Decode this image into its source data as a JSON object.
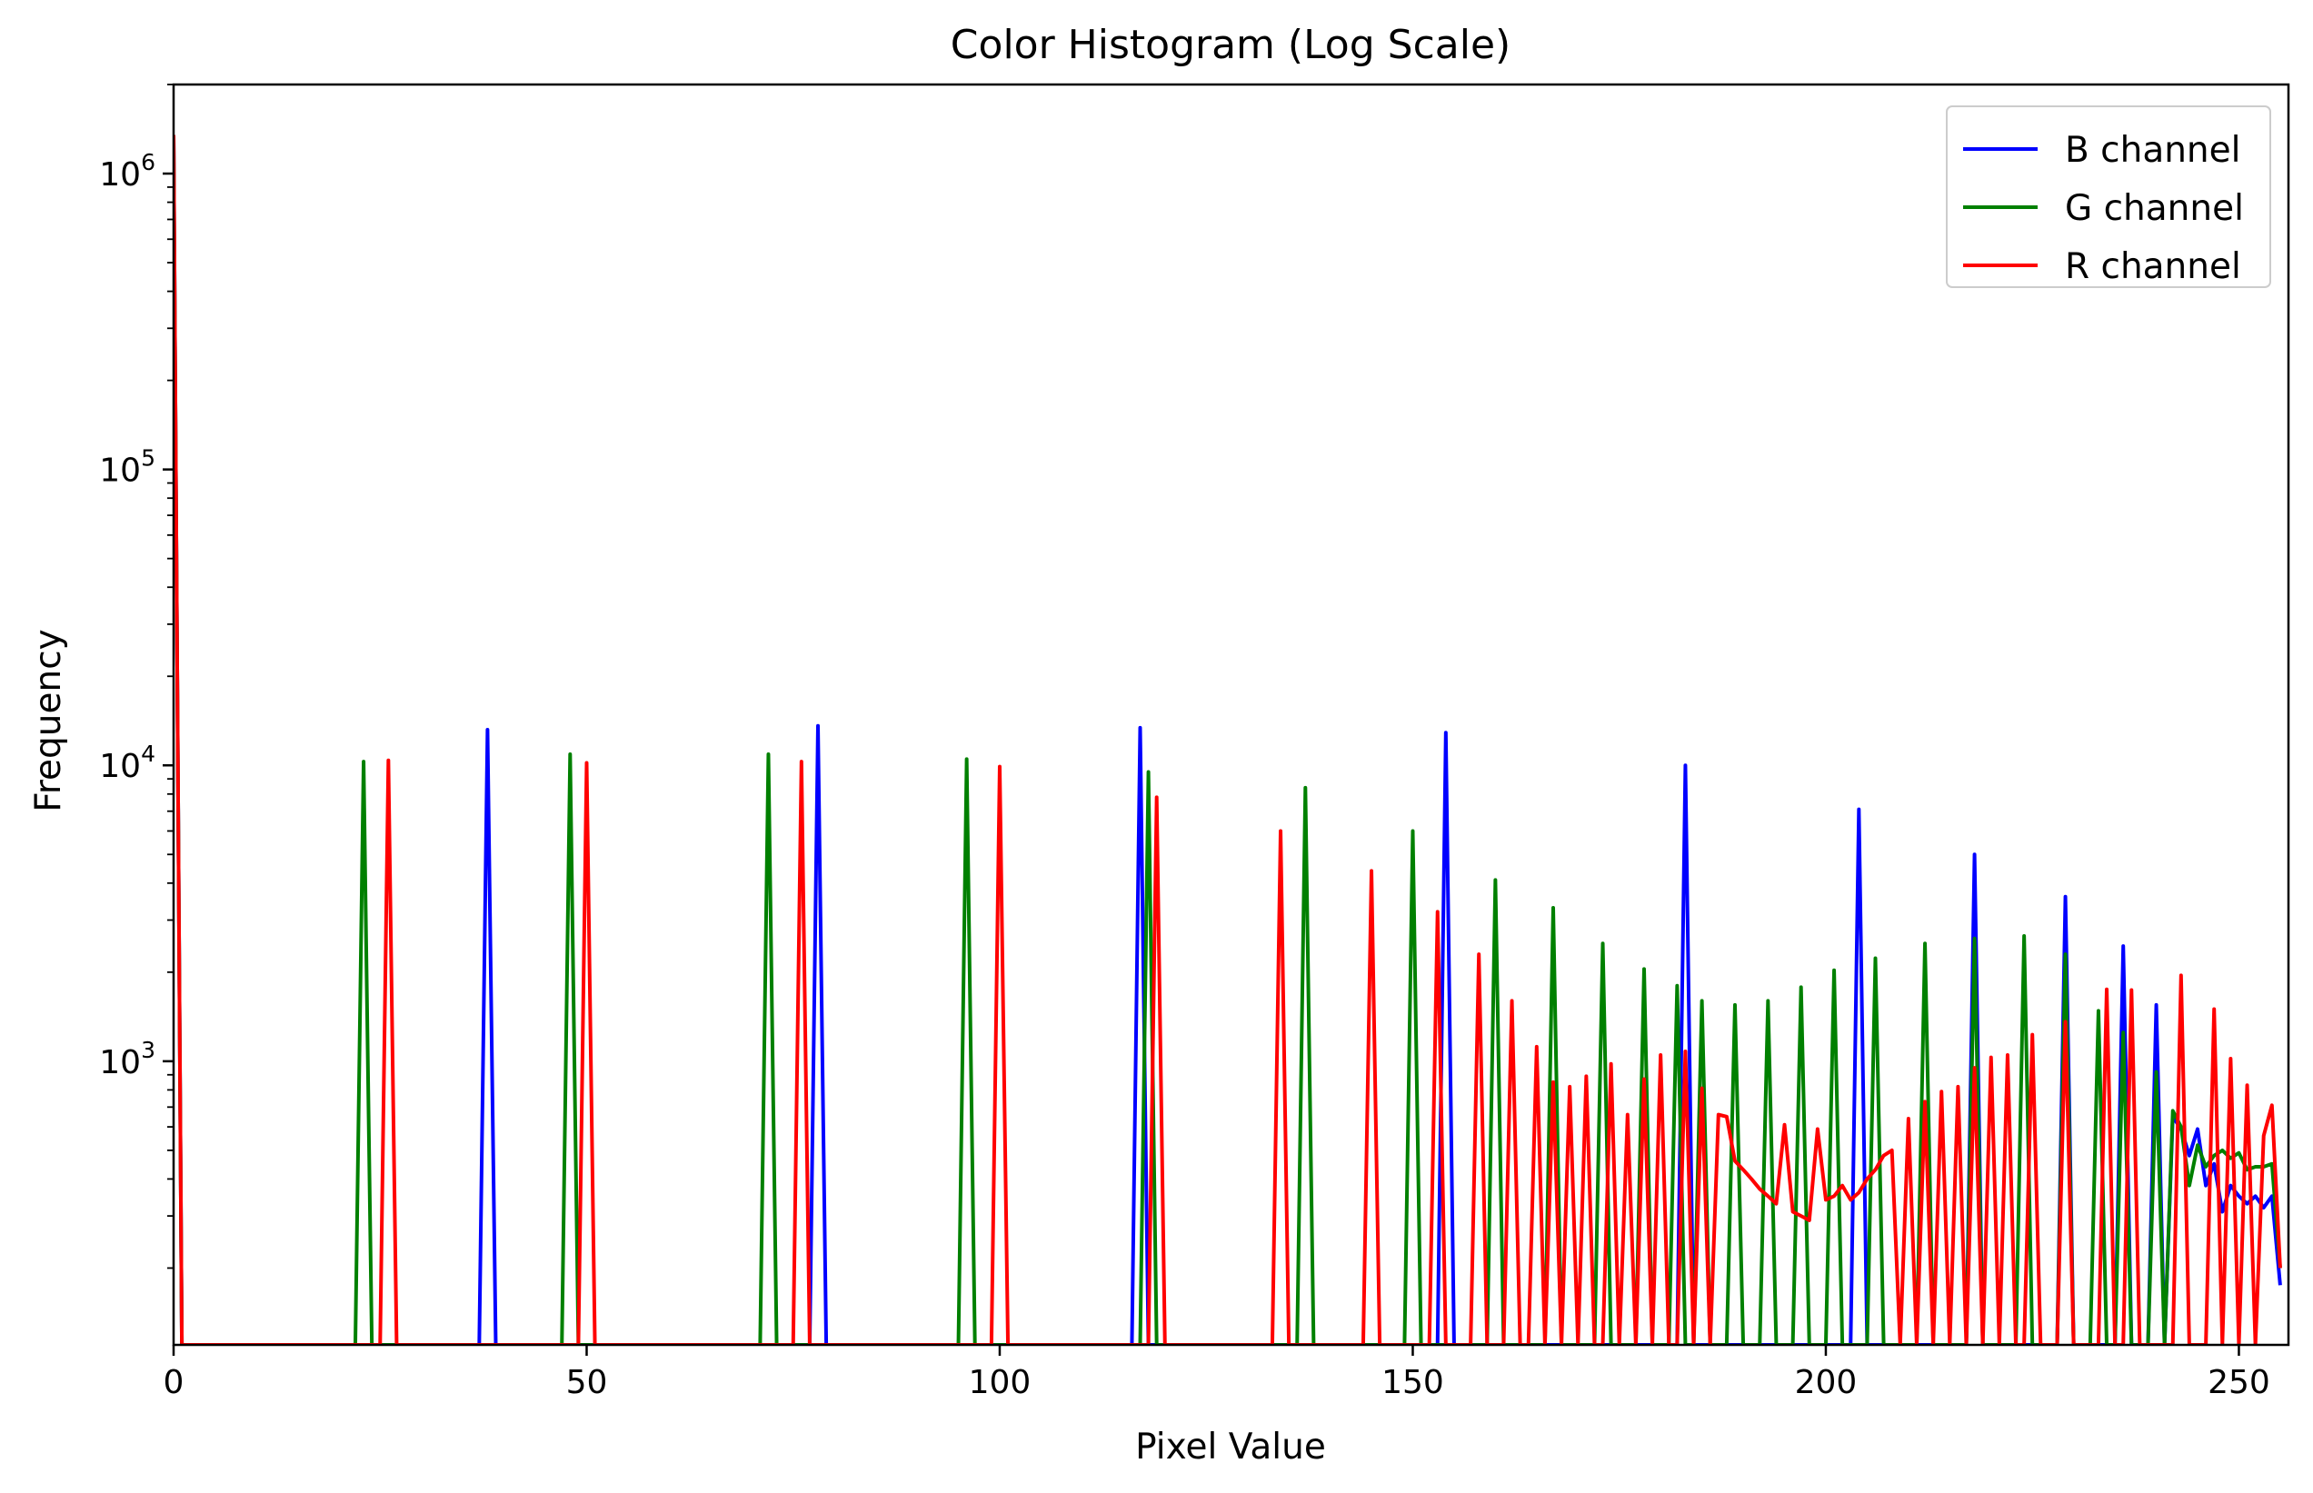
{
  "chart_data": {
    "type": "line",
    "title": "Color Histogram (Log Scale)",
    "xlabel": "Pixel Value",
    "ylabel": "Frequency",
    "xlim": [
      0,
      256
    ],
    "ylim": [
      110,
      2000000
    ],
    "yscale": "log",
    "grid": false,
    "legend_position": "top-right",
    "x_ticks": [
      0,
      50,
      100,
      150,
      200,
      250
    ],
    "x_tick_labels": [
      "0",
      "50",
      "100",
      "150",
      "200",
      "250"
    ],
    "y_ticks": [
      1000,
      10000,
      100000,
      1000000
    ],
    "y_tick_labels": [
      {
        "base": "10",
        "exp": "3"
      },
      {
        "base": "10",
        "exp": "4"
      },
      {
        "base": "10",
        "exp": "5"
      },
      {
        "base": "10",
        "exp": "6"
      }
    ],
    "series": [
      {
        "name": "B channel",
        "color": "#0000ff",
        "points": [
          [
            0,
            1350000
          ],
          [
            38,
            13200
          ],
          [
            78,
            13600
          ],
          [
            117,
            13400
          ],
          [
            154,
            12900
          ],
          [
            183,
            10000
          ],
          [
            204,
            7100
          ],
          [
            218,
            5000
          ],
          [
            229,
            3600
          ],
          [
            236,
            2450
          ],
          [
            240,
            1550
          ],
          [
            242,
            650
          ],
          [
            243,
            590
          ],
          [
            244,
            480
          ],
          [
            245,
            590
          ],
          [
            246,
            380
          ],
          [
            247,
            450
          ],
          [
            248,
            310
          ],
          [
            249,
            380
          ],
          [
            250,
            350
          ],
          [
            251,
            330
          ],
          [
            252,
            350
          ],
          [
            253,
            320
          ],
          [
            254,
            350
          ],
          [
            255,
            175
          ]
        ]
      },
      {
        "name": "G channel",
        "color": "#008000",
        "points": [
          [
            0,
            1350000
          ],
          [
            23,
            10300
          ],
          [
            48,
            10900
          ],
          [
            72,
            10900
          ],
          [
            96,
            10500
          ],
          [
            118,
            9500
          ],
          [
            137,
            8400
          ],
          [
            150,
            6000
          ],
          [
            160,
            4100
          ],
          [
            167,
            3300
          ],
          [
            173,
            2500
          ],
          [
            178,
            2050
          ],
          [
            182,
            1800
          ],
          [
            185,
            1600
          ],
          [
            189,
            1550
          ],
          [
            193,
            1600
          ],
          [
            197,
            1780
          ],
          [
            201,
            2030
          ],
          [
            206,
            2230
          ],
          [
            212,
            2500
          ],
          [
            218,
            2600
          ],
          [
            224,
            2650
          ],
          [
            229,
            2300
          ],
          [
            233,
            1480
          ],
          [
            236,
            1250
          ],
          [
            240,
            920
          ],
          [
            242,
            680
          ],
          [
            243,
            600
          ],
          [
            244,
            380
          ],
          [
            245,
            520
          ],
          [
            246,
            440
          ],
          [
            247,
            480
          ],
          [
            248,
            500
          ],
          [
            249,
            470
          ],
          [
            250,
            490
          ],
          [
            251,
            430
          ],
          [
            252,
            440
          ],
          [
            253,
            440
          ],
          [
            254,
            450
          ],
          [
            255,
            200
          ]
        ]
      },
      {
        "name": "R channel",
        "color": "#ff0000",
        "points": [
          [
            0,
            1350000
          ],
          [
            26,
            10400
          ],
          [
            50,
            10200
          ],
          [
            76,
            10300
          ],
          [
            100,
            9900
          ],
          [
            119,
            7800
          ],
          [
            134,
            6000
          ],
          [
            145,
            4400
          ],
          [
            153,
            3200
          ],
          [
            158,
            2300
          ],
          [
            162,
            1600
          ],
          [
            165,
            1120
          ],
          [
            167,
            850
          ],
          [
            169,
            820
          ],
          [
            171,
            890
          ],
          [
            174,
            980
          ],
          [
            176,
            660
          ],
          [
            178,
            870
          ],
          [
            180,
            1050
          ],
          [
            183,
            1080
          ],
          [
            185,
            810
          ],
          [
            187,
            660
          ],
          [
            188,
            650
          ],
          [
            189,
            460
          ],
          [
            190,
            430
          ],
          [
            191,
            400
          ],
          [
            192,
            370
          ],
          [
            193,
            350
          ],
          [
            194,
            330
          ],
          [
            195,
            610
          ],
          [
            196,
            310
          ],
          [
            197,
            300
          ],
          [
            198,
            290
          ],
          [
            199,
            590
          ],
          [
            200,
            340
          ],
          [
            201,
            350
          ],
          [
            202,
            380
          ],
          [
            203,
            340
          ],
          [
            204,
            360
          ],
          [
            205,
            400
          ],
          [
            206,
            430
          ],
          [
            207,
            480
          ],
          [
            208,
            500
          ],
          [
            210,
            640
          ],
          [
            212,
            730
          ],
          [
            214,
            790
          ],
          [
            216,
            820
          ],
          [
            218,
            950
          ],
          [
            220,
            1030
          ],
          [
            222,
            1050
          ],
          [
            225,
            1230
          ],
          [
            229,
            1360
          ],
          [
            234,
            1750
          ],
          [
            237,
            1740
          ],
          [
            243,
            1950
          ],
          [
            247,
            1500
          ],
          [
            249,
            1020
          ],
          [
            251,
            830
          ],
          [
            253,
            560
          ],
          [
            254,
            710
          ],
          [
            255,
            200
          ]
        ]
      }
    ]
  }
}
